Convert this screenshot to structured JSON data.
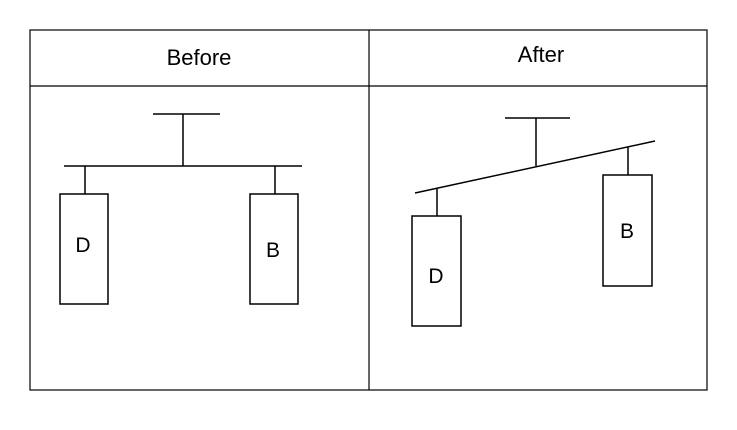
{
  "table": {
    "headers": {
      "before": "Before",
      "after": "After"
    }
  },
  "before_panel": {
    "left_box_label": "D",
    "right_box_label": "B"
  },
  "after_panel": {
    "left_box_label": "D",
    "right_box_label": "B"
  },
  "colors": {
    "stroke": "#000000",
    "background": "#ffffff"
  }
}
